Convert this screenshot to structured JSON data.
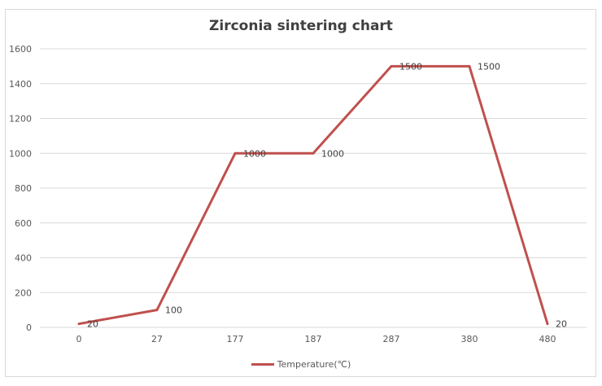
{
  "chart_data": {
    "type": "line",
    "title": "Zirconia sintering chart",
    "categories": [
      "0",
      "27",
      "177",
      "187",
      "287",
      "380",
      "480"
    ],
    "series": [
      {
        "name": "Temperature(℃)",
        "values": [
          20,
          100,
          1000,
          1000,
          1500,
          1500,
          20
        ],
        "color": "#c0504d"
      }
    ],
    "ylim": [
      0,
      1600
    ],
    "yticks": [
      0,
      200,
      400,
      600,
      800,
      1000,
      1200,
      1400,
      1600
    ],
    "grid": true,
    "legend": "bottom",
    "data_labels": true
  }
}
